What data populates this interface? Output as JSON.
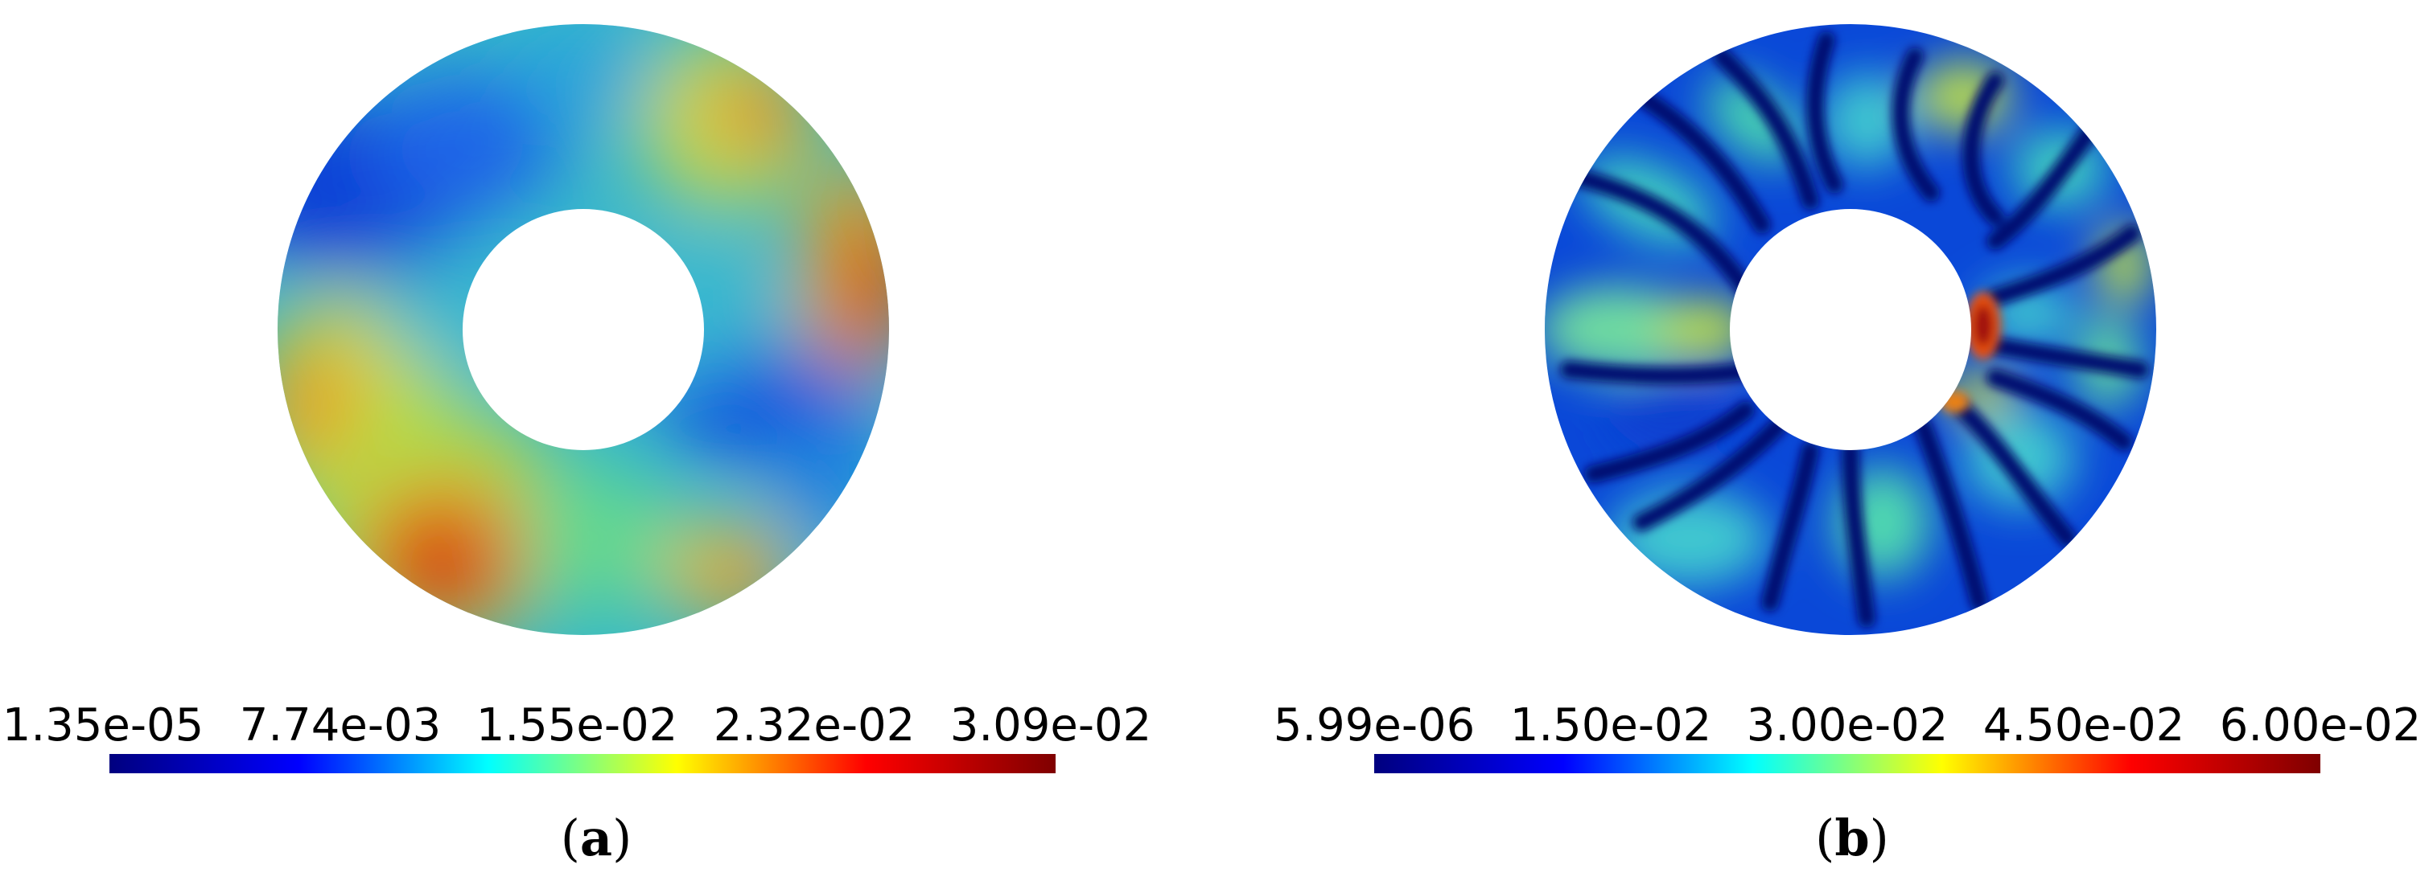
{
  "panels": [
    {
      "label_open": "(",
      "label_letter": "a",
      "label_close": ")",
      "colorbar": {
        "ticks": [
          "1.35e-05",
          "7.74e-03",
          "1.55e-02",
          "2.32e-02",
          "3.09e-02"
        ]
      },
      "colormap": [
        "#00007f",
        "#0000ff",
        "#00ffff",
        "#ffff00",
        "#ff0000",
        "#7f0000"
      ]
    },
    {
      "label_open": "(",
      "label_letter": "b",
      "label_close": ")",
      "colorbar": {
        "ticks": [
          "5.99e-06",
          "1.50e-02",
          "3.00e-02",
          "4.50e-02",
          "6.00e-02"
        ]
      },
      "colormap": [
        "#00007f",
        "#0000ff",
        "#00ffff",
        "#ffff00",
        "#ff0000",
        "#7f0000"
      ]
    }
  ]
}
